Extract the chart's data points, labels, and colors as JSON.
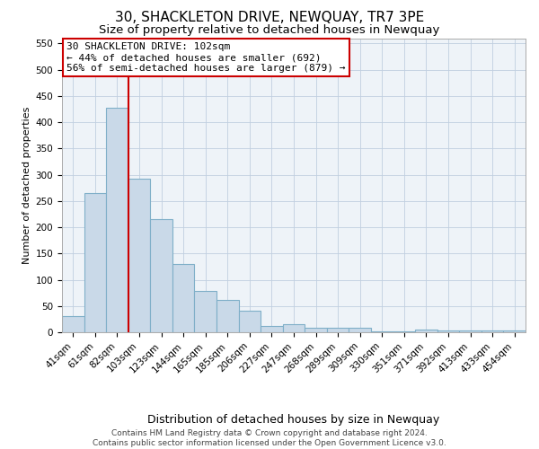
{
  "title": "30, SHACKLETON DRIVE, NEWQUAY, TR7 3PE",
  "subtitle": "Size of property relative to detached houses in Newquay",
  "xlabel": "Distribution of detached houses by size in Newquay",
  "ylabel": "Number of detached properties",
  "categories": [
    "41sqm",
    "61sqm",
    "82sqm",
    "103sqm",
    "123sqm",
    "144sqm",
    "165sqm",
    "185sqm",
    "206sqm",
    "227sqm",
    "247sqm",
    "268sqm",
    "289sqm",
    "309sqm",
    "330sqm",
    "351sqm",
    "371sqm",
    "392sqm",
    "413sqm",
    "433sqm",
    "454sqm"
  ],
  "values": [
    30,
    265,
    428,
    293,
    215,
    130,
    79,
    61,
    41,
    12,
    15,
    9,
    9,
    9,
    1,
    1,
    5,
    4,
    3,
    3,
    3
  ],
  "bar_color": "#c9d9e8",
  "bar_edge_color": "#7fafc8",
  "bar_linewidth": 0.8,
  "marker_line_index": 2,
  "marker_line_color": "#cc0000",
  "annotation_box_text": "30 SHACKLETON DRIVE: 102sqm\n← 44% of detached houses are smaller (692)\n56% of semi-detached houses are larger (879) →",
  "annotation_box_edge_color": "#cc0000",
  "ylim": [
    0,
    560
  ],
  "yticks": [
    0,
    50,
    100,
    150,
    200,
    250,
    300,
    350,
    400,
    450,
    500,
    550
  ],
  "grid_color": "#c0cfe0",
  "background_color": "#eef3f8",
  "fig_background_color": "#ffffff",
  "footer_line1": "Contains HM Land Registry data © Crown copyright and database right 2024.",
  "footer_line2": "Contains public sector information licensed under the Open Government Licence v3.0.",
  "title_fontsize": 11,
  "subtitle_fontsize": 9.5,
  "xlabel_fontsize": 9,
  "ylabel_fontsize": 8,
  "tick_fontsize": 7.5,
  "annotation_fontsize": 8,
  "footer_fontsize": 6.5
}
